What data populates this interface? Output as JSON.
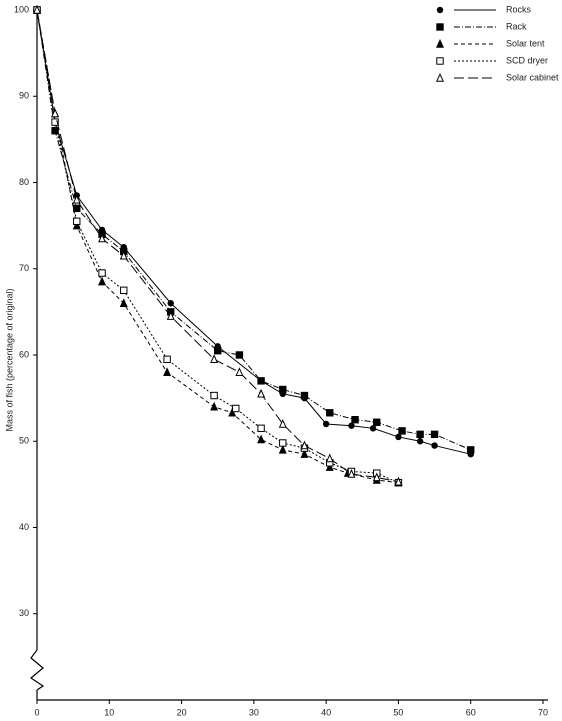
{
  "chart_data": {
    "type": "line",
    "ylabel": "Mass of fish (percentage of original)",
    "xlim": [
      0,
      70
    ],
    "xticks": [
      0,
      10,
      20,
      30,
      40,
      50,
      60,
      70
    ],
    "ylim": [
      20,
      100
    ],
    "yticks": [
      30,
      40,
      50,
      60,
      70,
      80,
      90,
      100
    ],
    "legend": "upper right",
    "series": [
      {
        "name": "Rocks",
        "color": "#000000",
        "marker": "circle",
        "dash": "solid",
        "x": [
          0,
          2.5,
          5.5,
          9,
          12,
          18.5,
          25,
          31,
          34,
          37,
          40,
          43.5,
          46.5,
          50,
          53,
          55,
          60
        ],
        "values": [
          100,
          87,
          78.5,
          74.5,
          72.5,
          66,
          61,
          57,
          55.5,
          55,
          52,
          51.8,
          51.5,
          50.5,
          50,
          49.5,
          48.5
        ]
      },
      {
        "name": "Rack",
        "color": "#000000",
        "marker": "square",
        "dash": "dashdot",
        "x": [
          0,
          2.5,
          5.5,
          9,
          12,
          18.5,
          25,
          28,
          31,
          34,
          37,
          40.5,
          44,
          47,
          50.5,
          53,
          55,
          60
        ],
        "values": [
          100,
          86,
          77,
          74,
          72,
          65,
          60.5,
          60,
          57,
          56,
          55.3,
          53.3,
          52.5,
          52.2,
          51.2,
          50.8,
          50.8,
          49
        ]
      },
      {
        "name": "Solar tent",
        "color": "#000000",
        "marker": "triangle",
        "dash": "dashed",
        "x": [
          0,
          2.5,
          5.5,
          9,
          12,
          18,
          24.5,
          27,
          31,
          34,
          37,
          40.5,
          43,
          47,
          50
        ],
        "values": [
          100,
          88,
          75,
          68.5,
          66,
          58,
          54,
          53.3,
          50.2,
          49,
          48.5,
          47,
          46.3,
          45.5,
          45.2
        ]
      },
      {
        "name": "SCD dryer",
        "color": "#000000",
        "marker": "open-square",
        "dash": "dotted",
        "x": [
          0,
          2.5,
          5.5,
          9,
          12,
          18,
          24.5,
          27.5,
          31,
          34,
          37,
          40.5,
          43.5,
          47,
          50
        ],
        "values": [
          100,
          87,
          75.5,
          69.5,
          67.5,
          59.5,
          55.3,
          53.8,
          51.5,
          49.8,
          49.2,
          47.5,
          46.5,
          46.3,
          45.2
        ]
      },
      {
        "name": "Solar cabinet",
        "color": "#000000",
        "marker": "open-triangle",
        "dash": "longdash",
        "x": [
          0,
          2.5,
          5.5,
          9,
          12,
          18.5,
          24.5,
          28,
          31,
          34,
          37,
          40.5,
          43.5,
          47,
          50
        ],
        "values": [
          100,
          88,
          78,
          73.5,
          71.5,
          64.5,
          59.5,
          58,
          55.5,
          52,
          49.5,
          48,
          46.2,
          45.8,
          45.3
        ]
      }
    ]
  }
}
